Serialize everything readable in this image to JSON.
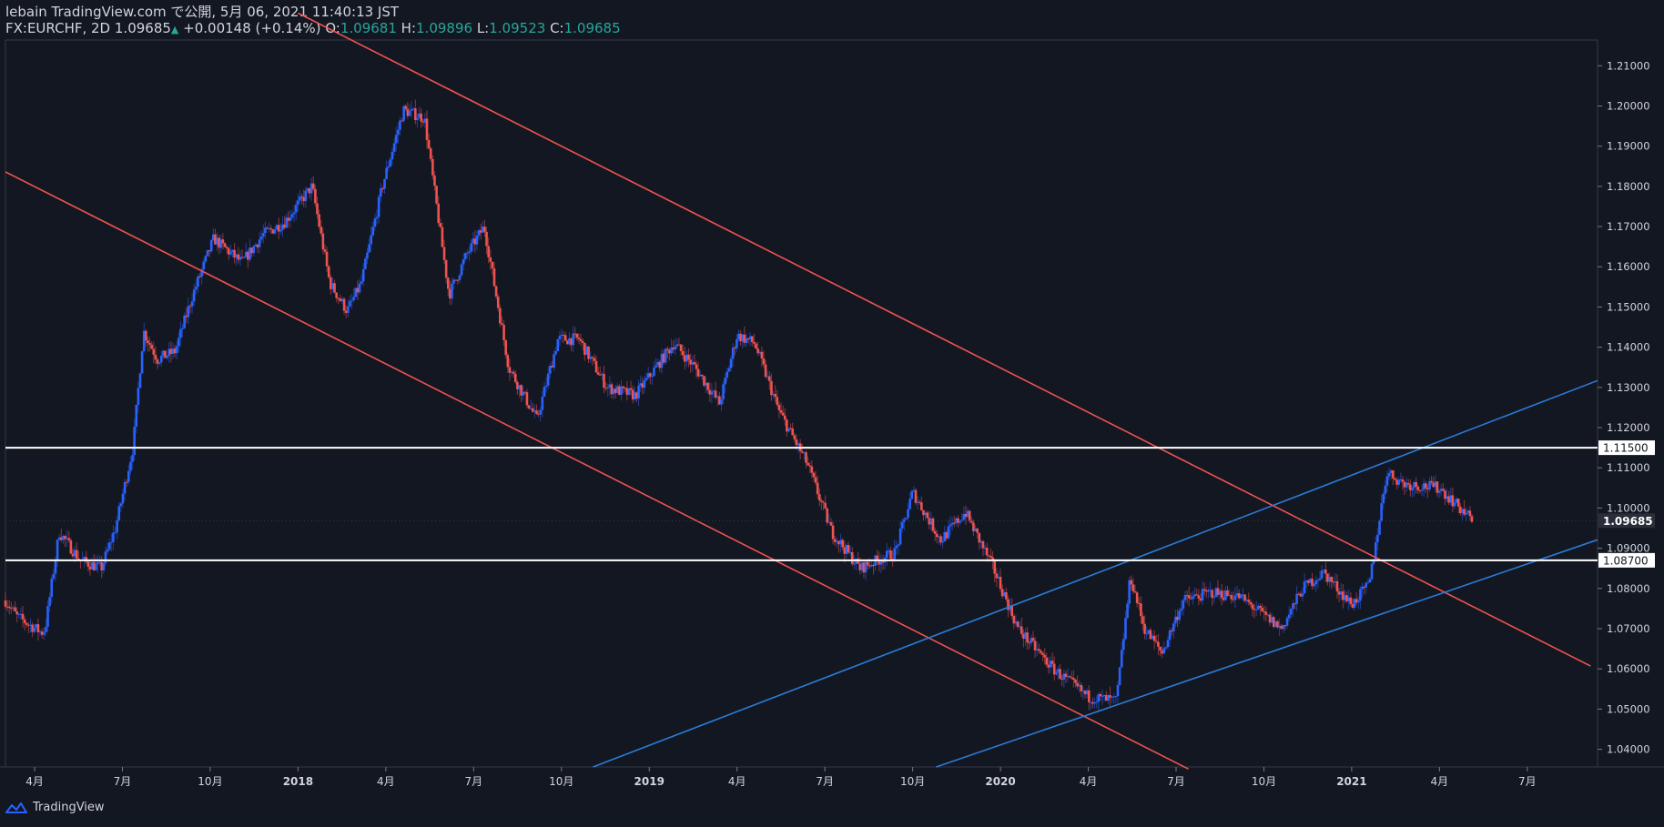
{
  "header": {
    "line1": "lebain TradingView.com で公開, 5月 06, 2021 11:40:13 JST",
    "symbol": "FX:EURCHF, 2D",
    "last": "1.09685",
    "change": "+0.00148 (+0.14%)",
    "o_label": "O:",
    "o_value": "1.09681",
    "h_label": "H:",
    "h_value": "1.09896",
    "l_label": "L:",
    "l_value": "1.09523",
    "c_label": "C:",
    "c_value": "1.09685"
  },
  "footer": {
    "brand": "TradingView",
    "logo_icon": "tradingview-logo-icon"
  },
  "colors": {
    "background": "#131722",
    "up": "#2962ff",
    "down": "#ef5350",
    "channel_red": "#f05350",
    "channel_blue": "#2b7bd6",
    "level_line": "#ffffff",
    "text": "#d1d4dc",
    "grid_border": "#363a45"
  },
  "chart_data": {
    "type": "candlestick",
    "symbol": "FX:EURCHF",
    "timeframe": "2D",
    "ylim": [
      1.0356,
      1.2164
    ],
    "xlim": [
      2017.167,
      2021.7
    ],
    "y_ticks": [
      "1.21000",
      "1.20000",
      "1.19000",
      "1.18000",
      "1.17000",
      "1.16000",
      "1.15000",
      "1.14000",
      "1.13000",
      "1.12000",
      "1.11000",
      "1.10000",
      "1.09000",
      "1.08000",
      "1.07000",
      "1.06000",
      "1.05000",
      "1.04000"
    ],
    "x_ticks": [
      {
        "t": 2017.25,
        "label": "4月"
      },
      {
        "t": 2017.5,
        "label": "7月"
      },
      {
        "t": 2017.75,
        "label": "10月"
      },
      {
        "t": 2018.0,
        "label": "2018"
      },
      {
        "t": 2018.25,
        "label": "4月"
      },
      {
        "t": 2018.5,
        "label": "7月"
      },
      {
        "t": 2018.75,
        "label": "10月"
      },
      {
        "t": 2019.0,
        "label": "2019"
      },
      {
        "t": 2019.25,
        "label": "4月"
      },
      {
        "t": 2019.5,
        "label": "7月"
      },
      {
        "t": 2019.75,
        "label": "10月"
      },
      {
        "t": 2020.0,
        "label": "2020"
      },
      {
        "t": 2020.25,
        "label": "4月"
      },
      {
        "t": 2020.5,
        "label": "7月"
      },
      {
        "t": 2020.75,
        "label": "10月"
      },
      {
        "t": 2021.0,
        "label": "2021"
      },
      {
        "t": 2021.25,
        "label": "4月"
      },
      {
        "t": 2021.5,
        "label": "7月"
      }
    ],
    "price_path": [
      [
        2017.167,
        1.077
      ],
      [
        2017.2,
        1.073
      ],
      [
        2017.27,
        1.069
      ],
      [
        2017.28,
        1.07
      ],
      [
        2017.32,
        1.094
      ],
      [
        2017.38,
        1.087
      ],
      [
        2017.44,
        1.085
      ],
      [
        2017.48,
        1.095
      ],
      [
        2017.53,
        1.115
      ],
      [
        2017.56,
        1.144
      ],
      [
        2017.6,
        1.137
      ],
      [
        2017.65,
        1.139
      ],
      [
        2017.7,
        1.153
      ],
      [
        2017.76,
        1.167
      ],
      [
        2017.84,
        1.161
      ],
      [
        2017.9,
        1.168
      ],
      [
        2017.96,
        1.171
      ],
      [
        2018.04,
        1.18
      ],
      [
        2018.09,
        1.156
      ],
      [
        2018.14,
        1.149
      ],
      [
        2018.18,
        1.156
      ],
      [
        2018.24,
        1.18
      ],
      [
        2018.3,
        1.199
      ],
      [
        2018.36,
        1.197
      ],
      [
        2018.39,
        1.178
      ],
      [
        2018.43,
        1.153
      ],
      [
        2018.48,
        1.163
      ],
      [
        2018.53,
        1.17
      ],
      [
        2018.6,
        1.135
      ],
      [
        2018.68,
        1.122
      ],
      [
        2018.74,
        1.142
      ],
      [
        2018.8,
        1.142
      ],
      [
        2018.88,
        1.13
      ],
      [
        2018.96,
        1.128
      ],
      [
        2019.07,
        1.141
      ],
      [
        2019.13,
        1.135
      ],
      [
        2019.2,
        1.126
      ],
      [
        2019.25,
        1.143
      ],
      [
        2019.3,
        1.141
      ],
      [
        2019.37,
        1.124
      ],
      [
        2019.45,
        1.111
      ],
      [
        2019.52,
        1.094
      ],
      [
        2019.6,
        1.085
      ],
      [
        2019.7,
        1.089
      ],
      [
        2019.75,
        1.104
      ],
      [
        2019.83,
        1.092
      ],
      [
        2019.9,
        1.099
      ],
      [
        2019.98,
        1.085
      ],
      [
        2020.05,
        1.07
      ],
      [
        2020.15,
        1.06
      ],
      [
        2020.25,
        1.053
      ],
      [
        2020.33,
        1.052
      ],
      [
        2020.37,
        1.083
      ],
      [
        2020.41,
        1.07
      ],
      [
        2020.46,
        1.064
      ],
      [
        2020.52,
        1.077
      ],
      [
        2020.6,
        1.079
      ],
      [
        2020.68,
        1.078
      ],
      [
        2020.8,
        1.07
      ],
      [
        2020.86,
        1.08
      ],
      [
        2020.92,
        1.084
      ],
      [
        2021.0,
        1.076
      ],
      [
        2021.05,
        1.081
      ],
      [
        2021.1,
        1.109
      ],
      [
        2021.15,
        1.106
      ],
      [
        2021.25,
        1.105
      ],
      [
        2021.32,
        1.099
      ],
      [
        2021.345,
        1.097
      ]
    ],
    "trend_lines": [
      {
        "name": "upper-red-channel",
        "color": "red",
        "p1": [
          2018.0,
          1.2231
        ],
        "p2": [
          2021.68,
          1.0607
        ]
      },
      {
        "name": "lower-red-channel",
        "color": "red",
        "p1": [
          2017.167,
          1.1836
        ],
        "p2": [
          2020.535,
          1.0351
        ]
      },
      {
        "name": "upper-blue-channel",
        "color": "blue",
        "p1": [
          2018.84,
          1.0356
        ],
        "p2": [
          2021.7,
          1.1317
        ]
      },
      {
        "name": "lower-blue-channel",
        "color": "blue",
        "p1": [
          2019.817,
          1.0356
        ],
        "p2": [
          2021.7,
          1.0921
        ]
      }
    ],
    "levels": [
      {
        "value": 1.115,
        "label": "1.11500"
      },
      {
        "value": 1.087,
        "label": "1.08700"
      }
    ],
    "last_price": {
      "value": 1.09685,
      "label": "1.09685"
    }
  }
}
